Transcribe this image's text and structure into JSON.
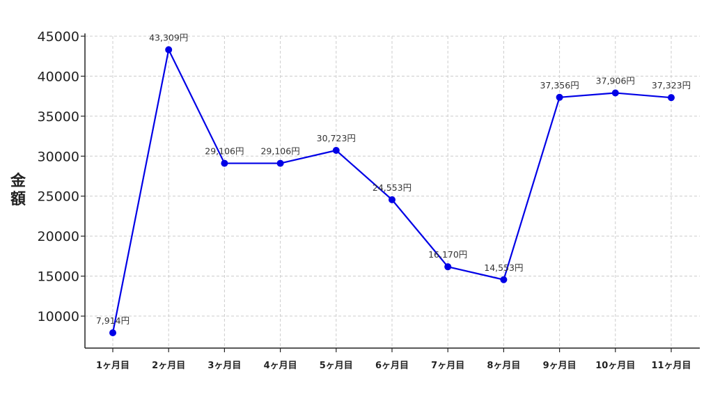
{
  "chart_data": {
    "type": "line",
    "title": "",
    "xlabel": "",
    "ylabel": "金額",
    "categories": [
      "1ヶ月目",
      "2ヶ月目",
      "3ヶ月目",
      "4ヶ月目",
      "5ヶ月目",
      "6ヶ月目",
      "7ヶ月目",
      "8ヶ月目",
      "9ヶ月目",
      "10ヶ月目",
      "11ヶ月目"
    ],
    "values": [
      7914,
      43309,
      29106,
      29106,
      30723,
      24553,
      16170,
      14553,
      37356,
      37906,
      37323
    ],
    "data_labels": [
      "7,914円",
      "43,309円",
      "29,106円",
      "29,106円",
      "30,723円",
      "24,553円",
      "16,170円",
      "14,553円",
      "37,356円",
      "37,906円",
      "37,323円"
    ],
    "yticks": [
      10000,
      15000,
      20000,
      25000,
      30000,
      35000,
      40000,
      45000
    ],
    "ylim": [
      6000,
      45000
    ],
    "grid": true,
    "colors": {
      "line": "#0000e6",
      "grid": "#cccccc",
      "axis": "#222222"
    }
  }
}
